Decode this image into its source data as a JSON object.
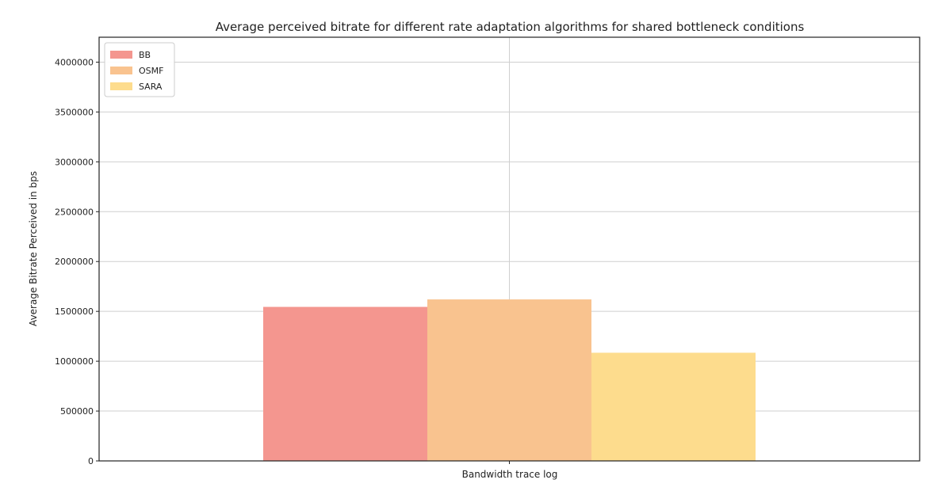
{
  "chart_data": {
    "type": "bar",
    "title": "Average perceived bitrate for different rate adaptation algorithms for shared bottleneck conditions",
    "xlabel": "Bandwidth trace log",
    "ylabel": "Average Bitrate Perceived in bps",
    "categories": [
      ""
    ],
    "series": [
      {
        "name": "BB",
        "values": [
          1545000
        ],
        "color": "#f4968f"
      },
      {
        "name": "OSMF",
        "values": [
          1620000
        ],
        "color": "#f9c38f"
      },
      {
        "name": "SARA",
        "values": [
          1085000
        ],
        "color": "#fddc8d"
      }
    ],
    "ylim": [
      0,
      4250000
    ],
    "yticks": [
      0,
      500000,
      1000000,
      1500000,
      2000000,
      2500000,
      3000000,
      3500000,
      4000000
    ],
    "ytick_labels": [
      "0",
      "500000",
      "1000000",
      "1500000",
      "2000000",
      "2500000",
      "3000000",
      "3500000",
      "4000000"
    ],
    "grid": true,
    "legend_position": "top-left"
  }
}
